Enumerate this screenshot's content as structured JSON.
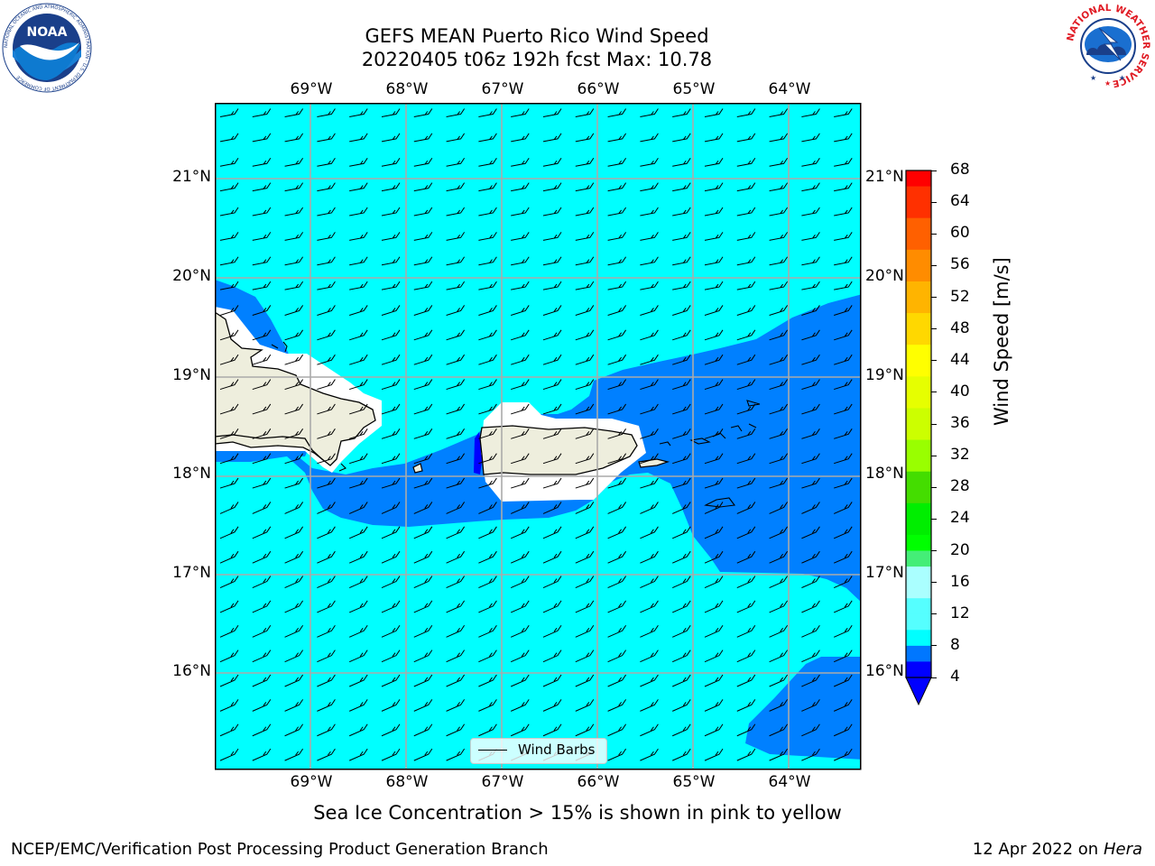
{
  "header": {
    "title_line1": "GEFS MEAN Puerto Rico Wind Speed",
    "title_line2": "20220405 t06z 192h fcst   Max: 10.78"
  },
  "logos": {
    "left": "noaa-logo",
    "right": "nws-logo",
    "noaa_text": "NOAA",
    "noaa_ring_text": "NATIONAL OCEANIC AND ATMOSPHERIC ADMINISTRATION · U.S. DEPARTMENT OF COMMERCE",
    "nws_ring_text": "NATIONAL WEATHER SERVICE"
  },
  "map": {
    "lon_labels": [
      "69°W",
      "68°W",
      "67°W",
      "66°W",
      "65°W",
      "64°W"
    ],
    "lat_labels": [
      "21°N",
      "20°N",
      "19°N",
      "18°N",
      "17°N",
      "16°N"
    ],
    "legend_label": "Wind Barbs",
    "colors": {
      "ocean_low": "#00ffff",
      "ocean_mid": "#0080ff",
      "land": "#eeeedd",
      "grid": "#aaaaaa"
    }
  },
  "colorbar": {
    "label": "Wind Speed [m/s]",
    "ticks": [
      "68",
      "64",
      "60",
      "56",
      "52",
      "48",
      "44",
      "40",
      "36",
      "32",
      "28",
      "24",
      "20",
      "16",
      "12",
      "8",
      "4"
    ],
    "colors": [
      "#ff0000",
      "#ff3000",
      "#ff6000",
      "#ff8c00",
      "#ffb400",
      "#ffd800",
      "#ffff00",
      "#e6ff00",
      "#ccff00",
      "#99ff00",
      "#44dd00",
      "#00ee00",
      "#00ff00",
      "#44ee77",
      "#aaffff",
      "#55ffff",
      "#00ffff",
      "#0077ff",
      "#0000ff"
    ],
    "under_color": "#0000ff"
  },
  "footer": {
    "note": "Sea Ice Concentration > 15% is shown in pink to yellow",
    "left": "NCEP/EMC/Verification Post Processing Product Generation Branch",
    "date": "12 Apr 2022 on ",
    "machine": "Hera"
  }
}
